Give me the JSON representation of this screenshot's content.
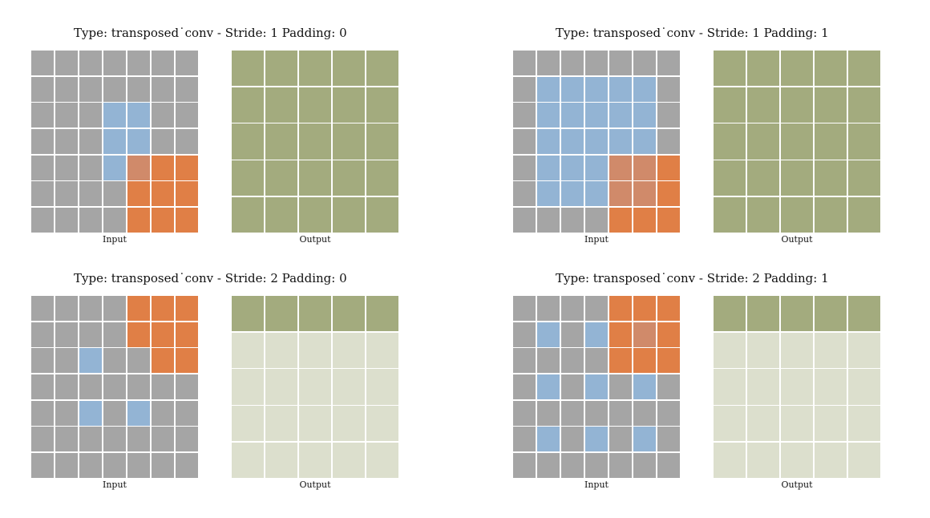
{
  "colors": {
    "padding": "#a5a5a5",
    "input": "#93b4d4",
    "kernel": "#e07f46",
    "overlap": "#d08a6a",
    "output_done": "#a3ab7e",
    "output_pending": "#dcdfcd"
  },
  "panels": [
    {
      "title": "Type: transposed˙conv  -  Stride: 1  Padding: 0",
      "input_label": "Input",
      "output_label": "Output",
      "input_grid": [
        "ppppppp",
        "ppppppp",
        "pppiipp",
        "pppiipp",
        "pppioKK",
        "ppppKKK",
        "ppppKKK"
      ],
      "output_done_rows": 5
    },
    {
      "title": "Type: transposed˙conv  -  Stride: 1  Padding: 1",
      "input_label": "Input",
      "output_label": "Output",
      "input_grid": [
        "ppppppp",
        "piiiiip",
        "piiiiip",
        "piiiiip",
        "piiiooK",
        "piiiooK",
        "ppppKKK"
      ],
      "output_done_rows": 5
    },
    {
      "title": "Type: transposed˙conv  -  Stride: 2  Padding: 0",
      "input_label": "Input",
      "output_label": "Output",
      "input_grid": [
        "ppppKKK",
        "ppppKKK",
        "ppippKK",
        "ppppppp",
        "ppipipp",
        "ppppppp",
        "ppppppp"
      ],
      "output_done_rows": 1
    },
    {
      "title": "Type: transposed˙conv  -  Stride: 2  Padding: 1",
      "input_label": "Input",
      "output_label": "Output",
      "input_grid": [
        "ppppKKK",
        "pipiKoK",
        "ppppKKK",
        "pipipip",
        "ppppppp",
        "pipipip",
        "ppppppp"
      ],
      "output_done_rows": 1
    }
  ]
}
